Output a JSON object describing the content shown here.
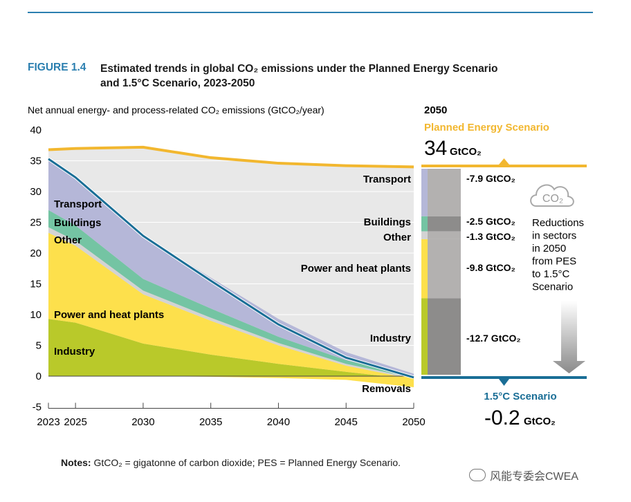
{
  "figure": {
    "label": "FIGURE 1.4",
    "title_line1": "Estimated trends in global CO₂ emissions under the Planned Energy Scenario",
    "title_line2": "and 1.5°C Scenario, 2023-2050"
  },
  "notes": {
    "label": "Notes:",
    "text": " GtCO₂ = gigatonne of carbon dioxide; PES = Planned Energy Scenario."
  },
  "watermark": "风能专委会CWEA",
  "colors": {
    "pes": "#f2b72f",
    "scenario15": "#1a6e96",
    "transport": "#b5b7d8",
    "buildings": "#74c4a3",
    "other": "#d3d3d3",
    "power": "#fde04c",
    "industry": "#b9c92a",
    "bar_dark": "#8d8c8b",
    "bar_light": "#b3b1b0",
    "plot_bg": "#e8e8e8"
  },
  "chart_data": {
    "type": "area",
    "ylabel": "Net annual energy- and process-related CO₂ emissions (GtCO₂/year)",
    "x": [
      2023,
      2025,
      2030,
      2035,
      2040,
      2045,
      2050
    ],
    "xticks": [
      "2023",
      "2025",
      "2030",
      "2035",
      "2040",
      "2045",
      "2050"
    ],
    "ylim": [
      -5,
      40
    ],
    "yticks": [
      "40",
      "35",
      "30",
      "25",
      "20",
      "15",
      "10",
      "5",
      "0",
      "-5"
    ],
    "series": [
      {
        "name": "Industry",
        "values": [
          9.3,
          8.7,
          5.3,
          3.5,
          2.0,
          0.7,
          -0.5
        ]
      },
      {
        "name": "Power and heat plants",
        "values": [
          14.0,
          12.5,
          8.0,
          5.5,
          3.0,
          1.0,
          0.0
        ]
      },
      {
        "name": "Other",
        "values": [
          0.9,
          0.8,
          0.6,
          0.5,
          0.4,
          0.3,
          0.2
        ]
      },
      {
        "name": "Buildings",
        "values": [
          2.8,
          2.5,
          1.9,
          1.5,
          1.0,
          0.6,
          0.3
        ]
      },
      {
        "name": "Transport",
        "values": [
          8.2,
          7.8,
          7.0,
          5.0,
          2.9,
          1.3,
          0.4
        ]
      }
    ],
    "removals": [
      0.0,
      0.0,
      0.0,
      -0.1,
      -0.3,
      -0.6,
      -1.8
    ],
    "pes_line": {
      "name": "Planned Energy Scenario",
      "values": [
        36.8,
        37.0,
        37.2,
        35.5,
        34.6,
        34.2,
        34.0
      ]
    },
    "scenario_15_line": {
      "name": "1.5°C Scenario",
      "values": [
        35.3,
        32.3,
        22.8,
        15.5,
        8.4,
        3.0,
        -0.2
      ]
    },
    "left_labels": [
      "Transport",
      "Buildings",
      "Other",
      "Power and heat plants",
      "Industry"
    ],
    "right_labels": [
      "Transport",
      "Buildings",
      "Other",
      "Power and heat plants",
      "Industry",
      "Removals"
    ],
    "panel_2050": {
      "year": "2050",
      "pes_title": "Planned Energy Scenario",
      "pes_value": "34",
      "pes_unit": "GtCO₂",
      "s15_title": "1.5°C Scenario",
      "s15_value": "-0.2",
      "s15_unit": "GtCO₂",
      "co2_badge": "CO₂",
      "reductions_text": [
        "Reductions",
        "in sectors",
        "in 2050",
        "from PES",
        "to 1.5°C",
        "Scenario"
      ],
      "reductions": [
        {
          "sector": "Transport",
          "value": -7.9,
          "label": "-7.9 GtCO₂"
        },
        {
          "sector": "Buildings",
          "value": -2.5,
          "label": "-2.5 GtCO₂"
        },
        {
          "sector": "Other",
          "value": -1.3,
          "label": "-1.3 GtCO₂"
        },
        {
          "sector": "Power and heat plants",
          "value": -9.8,
          "label": "-9.8 GtCO₂"
        },
        {
          "sector": "Industry",
          "value": -12.7,
          "label": "-12.7 GtCO₂"
        }
      ]
    }
  }
}
